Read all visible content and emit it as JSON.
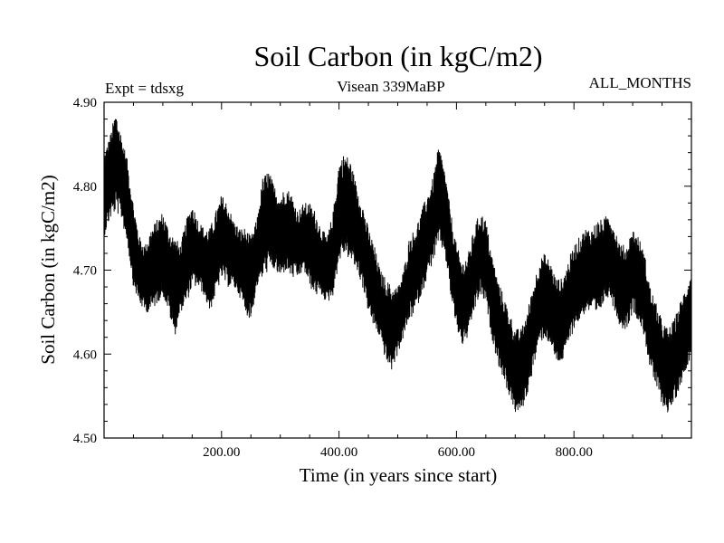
{
  "chart_data": {
    "type": "line",
    "title": "Soil Carbon (in kgC/m2)",
    "subtitle": "Visean 339MaBP",
    "experiment": "Expt = tdsxg",
    "months": "ALL_MONTHS",
    "xlabel": "Time (in years since start)",
    "ylabel": "Soil Carbon (in kgC/m2)",
    "xlim": [
      0,
      1000
    ],
    "ylim": [
      4.5,
      4.9
    ],
    "xticks": [
      {
        "value": 200,
        "label": "200.00"
      },
      {
        "value": 400,
        "label": "400.00"
      },
      {
        "value": 600,
        "label": "600.00"
      },
      {
        "value": 800,
        "label": "800.00"
      }
    ],
    "yticks": [
      {
        "value": 4.5,
        "label": "4.50"
      },
      {
        "value": 4.6,
        "label": "4.60"
      },
      {
        "value": 4.7,
        "label": "4.70"
      },
      {
        "value": 4.8,
        "label": "4.80"
      },
      {
        "value": 4.9,
        "label": "4.90"
      }
    ],
    "series": [
      {
        "name": "Soil Carbon",
        "color": "#000000",
        "x": [
          0,
          10,
          20,
          30,
          40,
          50,
          60,
          70,
          80,
          90,
          100,
          110,
          120,
          130,
          140,
          150,
          160,
          170,
          180,
          190,
          200,
          210,
          220,
          230,
          240,
          250,
          260,
          270,
          280,
          290,
          300,
          310,
          320,
          330,
          340,
          350,
          360,
          370,
          380,
          390,
          400,
          410,
          420,
          430,
          440,
          450,
          460,
          470,
          480,
          490,
          500,
          510,
          520,
          530,
          540,
          550,
          560,
          570,
          580,
          590,
          600,
          610,
          620,
          630,
          640,
          650,
          660,
          670,
          680,
          690,
          700,
          710,
          720,
          730,
          740,
          750,
          760,
          770,
          780,
          790,
          800,
          810,
          820,
          830,
          840,
          850,
          860,
          870,
          880,
          890,
          900,
          910,
          920,
          930,
          940,
          950,
          960,
          970,
          980,
          990,
          1000
        ],
        "center": [
          4.79,
          4.81,
          4.83,
          4.81,
          4.78,
          4.73,
          4.7,
          4.69,
          4.7,
          4.71,
          4.72,
          4.7,
          4.68,
          4.69,
          4.71,
          4.73,
          4.72,
          4.71,
          4.7,
          4.72,
          4.74,
          4.73,
          4.72,
          4.71,
          4.7,
          4.69,
          4.72,
          4.75,
          4.76,
          4.75,
          4.74,
          4.75,
          4.74,
          4.73,
          4.74,
          4.73,
          4.72,
          4.71,
          4.7,
          4.72,
          4.77,
          4.78,
          4.77,
          4.75,
          4.73,
          4.7,
          4.68,
          4.66,
          4.64,
          4.63,
          4.64,
          4.66,
          4.69,
          4.7,
          4.72,
          4.74,
          4.76,
          4.79,
          4.77,
          4.72,
          4.68,
          4.66,
          4.67,
          4.7,
          4.72,
          4.71,
          4.67,
          4.64,
          4.62,
          4.6,
          4.58,
          4.58,
          4.6,
          4.63,
          4.66,
          4.67,
          4.66,
          4.64,
          4.64,
          4.66,
          4.68,
          4.69,
          4.7,
          4.7,
          4.7,
          4.71,
          4.72,
          4.7,
          4.68,
          4.68,
          4.7,
          4.69,
          4.67,
          4.63,
          4.61,
          4.59,
          4.58,
          4.59,
          4.61,
          4.63,
          4.65
        ],
        "spread": [
          0.05,
          0.05,
          0.06,
          0.05,
          0.05,
          0.05,
          0.04,
          0.04,
          0.05,
          0.05,
          0.05,
          0.05,
          0.06,
          0.04,
          0.05,
          0.05,
          0.04,
          0.04,
          0.05,
          0.05,
          0.05,
          0.05,
          0.04,
          0.04,
          0.05,
          0.05,
          0.04,
          0.06,
          0.06,
          0.05,
          0.05,
          0.05,
          0.05,
          0.04,
          0.04,
          0.05,
          0.05,
          0.04,
          0.04,
          0.05,
          0.06,
          0.06,
          0.06,
          0.05,
          0.05,
          0.05,
          0.05,
          0.04,
          0.05,
          0.05,
          0.04,
          0.04,
          0.05,
          0.05,
          0.05,
          0.05,
          0.05,
          0.06,
          0.05,
          0.05,
          0.05,
          0.05,
          0.05,
          0.05,
          0.05,
          0.05,
          0.05,
          0.05,
          0.05,
          0.05,
          0.05,
          0.05,
          0.05,
          0.05,
          0.05,
          0.05,
          0.05,
          0.05,
          0.05,
          0.05,
          0.05,
          0.05,
          0.05,
          0.05,
          0.06,
          0.05,
          0.05,
          0.05,
          0.05,
          0.05,
          0.05,
          0.05,
          0.05,
          0.05,
          0.05,
          0.05,
          0.05,
          0.05,
          0.05,
          0.05,
          0.05
        ]
      }
    ]
  }
}
